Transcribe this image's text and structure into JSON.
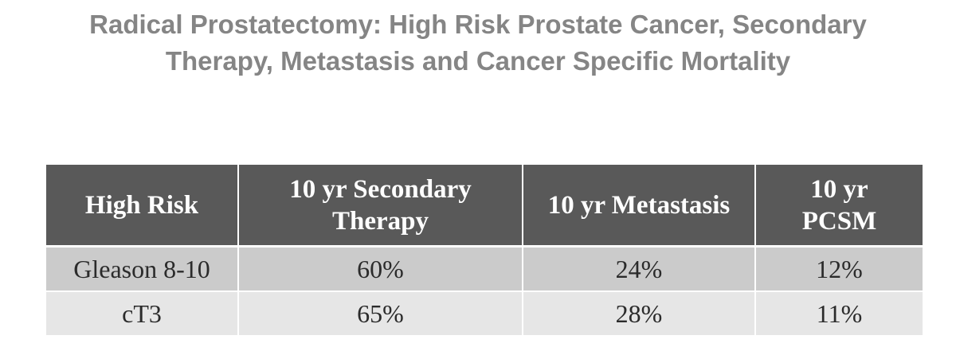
{
  "title": {
    "line1": "Radical Prostatectomy: High Risk Prostate Cancer, Secondary",
    "line2": "Therapy, Metastasis and Cancer Specific Mortality"
  },
  "table": {
    "headers": [
      [
        "High Risk"
      ],
      [
        "10 yr Secondary",
        "Therapy"
      ],
      [
        "10 yr Metastasis"
      ],
      [
        "10 yr",
        "PCSM"
      ]
    ],
    "rows": [
      [
        "Gleason 8-10",
        "60%",
        "24%",
        "12%"
      ],
      [
        "cT3",
        "65%",
        "28%",
        "11%"
      ]
    ]
  }
}
